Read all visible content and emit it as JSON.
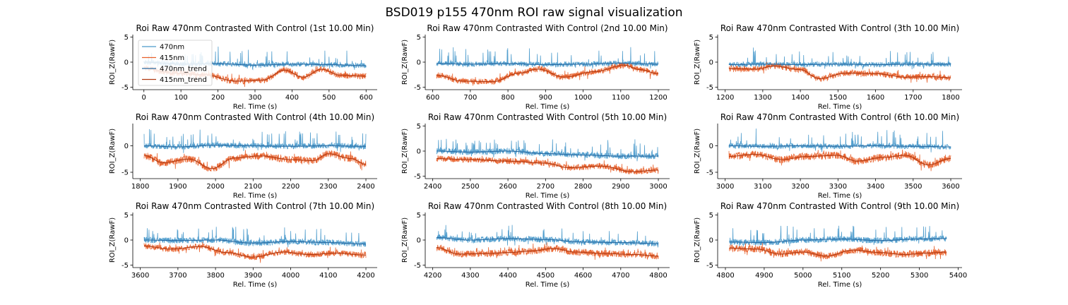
{
  "figure": {
    "title": "BSD019 p155 470nm ROI  raw signal visualization",
    "colors": {
      "signal_470": "#4a9acb",
      "signal_415": "#e8602a",
      "trend_470": "#2b6ca3",
      "trend_415": "#b03a12"
    }
  },
  "chart_data": [
    {
      "type": "line",
      "title": "Roi Raw 470nm Contrasted With Control (1st 10.00 Min)",
      "xlabel": "Rel. Time (s)",
      "ylabel": "ROI_Z(RawF)",
      "xlim": [
        -30,
        630
      ],
      "ylim": [
        -5.5,
        5.5
      ],
      "xticks": [
        0,
        100,
        200,
        300,
        400,
        500,
        600
      ],
      "yticks": [
        -5,
        0,
        5
      ],
      "series": [
        {
          "name": "470nm",
          "t0": 0,
          "t1": 600,
          "level": -0.3,
          "noise": 0.5,
          "spikes": 3.0
        },
        {
          "name": "415nm",
          "t0": 0,
          "t1": 600,
          "level": -2.6,
          "noise": 0.6,
          "spikes": 1.0
        },
        {
          "name": "470nm_trend",
          "x": [
            0,
            100,
            200,
            300,
            400,
            500,
            600
          ],
          "y": [
            0.0,
            -0.4,
            -0.3,
            -0.6,
            -0.4,
            -0.5,
            -0.7
          ]
        },
        {
          "name": "415nm_trend",
          "x": [
            0,
            80,
            160,
            250,
            320,
            380,
            430,
            480,
            530,
            600
          ],
          "y": [
            -1.2,
            -2.2,
            -2.5,
            -3.8,
            -3.6,
            -1.6,
            -3.0,
            -1.4,
            -2.6,
            -2.8
          ]
        }
      ],
      "legend": {
        "position": "upper-left",
        "entries": [
          "470nm",
          "415nm",
          "470nm_trend",
          "415nm_trend"
        ]
      }
    },
    {
      "type": "line",
      "title": "Roi Raw 470nm Contrasted With Control (2nd 10.00 Min)",
      "xlabel": "Rel. Time (s)",
      "ylabel": "ROI_Z(RawF)",
      "xlim": [
        580,
        1230
      ],
      "ylim": [
        -5.5,
        5.5
      ],
      "xticks": [
        600,
        700,
        800,
        900,
        1000,
        1100,
        1200
      ],
      "yticks": [
        -5,
        0,
        5
      ],
      "series": [
        {
          "name": "470nm",
          "t0": 610,
          "t1": 1200,
          "level": -0.2,
          "noise": 0.5,
          "spikes": 3.2
        },
        {
          "name": "415nm",
          "t0": 610,
          "t1": 1200,
          "level": -2.6,
          "noise": 0.6,
          "spikes": 0.8
        },
        {
          "name": "470nm_trend",
          "x": [
            610,
            700,
            800,
            900,
            1000,
            1100,
            1200
          ],
          "y": [
            -0.3,
            -0.4,
            -0.3,
            -0.5,
            -0.4,
            -0.2,
            -0.4
          ]
        },
        {
          "name": "415nm_trend",
          "x": [
            610,
            680,
            760,
            830,
            880,
            950,
            1030,
            1110,
            1150,
            1200
          ],
          "y": [
            -2.6,
            -3.8,
            -3.9,
            -2.2,
            -1.4,
            -3.0,
            -1.9,
            -0.6,
            -1.5,
            -2.3
          ]
        }
      ]
    },
    {
      "type": "line",
      "title": "Roi Raw 470nm Contrasted With Control (3th 10.00 Min)",
      "xlabel": "Rel. Time (s)",
      "ylabel": "ROI_Z(RawF)",
      "xlim": [
        1180,
        1830
      ],
      "ylim": [
        -5.5,
        5.5
      ],
      "xticks": [
        1200,
        1300,
        1400,
        1500,
        1600,
        1700,
        1800
      ],
      "yticks": [
        -5,
        0,
        5
      ],
      "series": [
        {
          "name": "470nm",
          "t0": 1210,
          "t1": 1800,
          "level": -0.3,
          "noise": 0.5,
          "spikes": 3.2
        },
        {
          "name": "415nm",
          "t0": 1210,
          "t1": 1800,
          "level": -2.4,
          "noise": 0.6,
          "spikes": 0.8
        },
        {
          "name": "470nm_trend",
          "x": [
            1210,
            1300,
            1400,
            1500,
            1600,
            1700,
            1800
          ],
          "y": [
            -0.5,
            -0.4,
            -0.5,
            -0.4,
            -0.5,
            -0.4,
            -0.4
          ]
        },
        {
          "name": "415nm_trend",
          "x": [
            1210,
            1280,
            1330,
            1400,
            1450,
            1520,
            1600,
            1680,
            1740,
            1800
          ],
          "y": [
            -1.3,
            -1.4,
            -0.8,
            -1.5,
            -3.3,
            -2.2,
            -2.3,
            -3.0,
            -2.9,
            -3.1
          ]
        }
      ]
    },
    {
      "type": "line",
      "title": "Roi Raw 470nm Contrasted With Control (4th 10.00 Min)",
      "xlabel": "Rel. Time (s)",
      "ylabel": "ROI_Z(RawF)",
      "xlim": [
        1780,
        2430
      ],
      "ylim": [
        -6.2,
        4.2
      ],
      "xticks": [
        1800,
        1900,
        2000,
        2100,
        2200,
        2300,
        2400
      ],
      "yticks": [
        -5,
        0
      ],
      "series": [
        {
          "name": "470nm",
          "t0": 1810,
          "t1": 2400,
          "level": 0.0,
          "noise": 0.5,
          "spikes": 3.0
        },
        {
          "name": "415nm",
          "t0": 1810,
          "t1": 2400,
          "level": -2.6,
          "noise": 0.7,
          "spikes": 1.0
        },
        {
          "name": "470nm_trend",
          "x": [
            1810,
            1900,
            2000,
            2100,
            2200,
            2300,
            2400
          ],
          "y": [
            0.0,
            -0.2,
            0.1,
            0.0,
            -0.1,
            0.0,
            -0.1
          ]
        },
        {
          "name": "415nm_trend",
          "x": [
            1810,
            1860,
            1930,
            1990,
            2050,
            2120,
            2200,
            2260,
            2300,
            2360,
            2400
          ],
          "y": [
            -1.8,
            -3.2,
            -2.5,
            -4.3,
            -2.3,
            -1.9,
            -2.6,
            -2.8,
            -1.5,
            -2.4,
            -3.5
          ]
        }
      ]
    },
    {
      "type": "line",
      "title": "Roi Raw 470nm Contrasted With Control (5th 10.00 Min)",
      "xlabel": "Rel. Time (s)",
      "ylabel": "ROI_Z(RawF)",
      "xlim": [
        2380,
        3030
      ],
      "ylim": [
        -5.5,
        5.5
      ],
      "xticks": [
        2400,
        2500,
        2600,
        2700,
        2800,
        2900,
        3000
      ],
      "yticks": [
        -5,
        0,
        5
      ],
      "series": [
        {
          "name": "470nm",
          "t0": 2410,
          "t1": 3000,
          "level": -0.3,
          "noise": 0.6,
          "spikes": 2.8
        },
        {
          "name": "415nm",
          "t0": 2410,
          "t1": 3000,
          "level": -2.4,
          "noise": 0.6,
          "spikes": 0.8
        },
        {
          "name": "470nm_trend",
          "x": [
            2410,
            2500,
            2600,
            2700,
            2800,
            2900,
            3000
          ],
          "y": [
            0.0,
            -0.2,
            0.0,
            -0.5,
            -0.8,
            -1.0,
            -1.0
          ]
        },
        {
          "name": "415nm_trend",
          "x": [
            2410,
            2500,
            2600,
            2700,
            2760,
            2850,
            2930,
            3000
          ],
          "y": [
            -1.5,
            -1.7,
            -2.0,
            -2.4,
            -3.3,
            -3.0,
            -4.1,
            -3.8
          ]
        }
      ]
    },
    {
      "type": "line",
      "title": "Roi Raw 470nm Contrasted With Control (6th 10.00 Min)",
      "xlabel": "Rel. Time (s)",
      "ylabel": "ROI_Z(RawF)",
      "xlim": [
        2980,
        3630
      ],
      "ylim": [
        -6.2,
        4.2
      ],
      "xticks": [
        3000,
        3100,
        3200,
        3300,
        3400,
        3500,
        3600
      ],
      "yticks": [
        -5,
        0
      ],
      "series": [
        {
          "name": "470nm",
          "t0": 3010,
          "t1": 3600,
          "level": 0.0,
          "noise": 0.5,
          "spikes": 3.0
        },
        {
          "name": "415nm",
          "t0": 3010,
          "t1": 3600,
          "level": -2.3,
          "noise": 0.7,
          "spikes": 0.9
        },
        {
          "name": "470nm_trend",
          "x": [
            3010,
            3100,
            3200,
            3300,
            3400,
            3500,
            3600
          ],
          "y": [
            0.0,
            -0.1,
            0.0,
            -0.1,
            0.0,
            -0.1,
            -0.2
          ]
        },
        {
          "name": "415nm_trend",
          "x": [
            3010,
            3080,
            3150,
            3220,
            3300,
            3350,
            3420,
            3480,
            3540,
            3600
          ],
          "y": [
            -2.0,
            -1.6,
            -2.6,
            -2.0,
            -1.8,
            -2.9,
            -2.2,
            -1.8,
            -3.6,
            -2.4
          ]
        }
      ]
    },
    {
      "type": "line",
      "title": "Roi Raw 470nm Contrasted With Control (7th 10.00 Min)",
      "xlabel": "Rel. Time (s)",
      "ylabel": "ROI_Z(RawF)",
      "xlim": [
        3580,
        4230
      ],
      "ylim": [
        -5.5,
        5.5
      ],
      "xticks": [
        3600,
        3700,
        3800,
        3900,
        4000,
        4100,
        4200
      ],
      "yticks": [
        -5,
        0,
        5
      ],
      "series": [
        {
          "name": "470nm",
          "t0": 3610,
          "t1": 4200,
          "level": -0.2,
          "noise": 0.6,
          "spikes": 3.0
        },
        {
          "name": "415nm",
          "t0": 3610,
          "t1": 4200,
          "level": -2.4,
          "noise": 0.6,
          "spikes": 0.8
        },
        {
          "name": "470nm_trend",
          "x": [
            3610,
            3700,
            3800,
            3900,
            4000,
            4100,
            4200
          ],
          "y": [
            0.0,
            -0.1,
            0.0,
            -0.6,
            -0.3,
            -0.5,
            -0.8
          ]
        },
        {
          "name": "415nm_trend",
          "x": [
            3610,
            3680,
            3760,
            3830,
            3900,
            3980,
            4050,
            4120,
            4200
          ],
          "y": [
            -1.2,
            -1.8,
            -1.3,
            -2.5,
            -3.4,
            -2.4,
            -2.9,
            -2.6,
            -3.0
          ]
        }
      ]
    },
    {
      "type": "line",
      "title": "Roi Raw 470nm Contrasted With Control (8th 10.00 Min)",
      "xlabel": "Rel. Time (s)",
      "ylabel": "ROI_Z(RawF)",
      "xlim": [
        4180,
        4830
      ],
      "ylim": [
        -5.5,
        5.5
      ],
      "xticks": [
        4200,
        4300,
        4400,
        4500,
        4600,
        4700,
        4800
      ],
      "yticks": [
        -5,
        0,
        5
      ],
      "series": [
        {
          "name": "470nm",
          "t0": 4210,
          "t1": 4800,
          "level": 0.0,
          "noise": 0.6,
          "spikes": 2.8
        },
        {
          "name": "415nm",
          "t0": 4210,
          "t1": 4800,
          "level": -2.6,
          "noise": 0.7,
          "spikes": 0.8
        },
        {
          "name": "470nm_trend",
          "x": [
            4210,
            4300,
            4400,
            4500,
            4600,
            4700,
            4800
          ],
          "y": [
            0.5,
            0.0,
            0.3,
            0.1,
            -0.4,
            -0.5,
            -0.7
          ]
        },
        {
          "name": "415nm_trend",
          "x": [
            4210,
            4270,
            4340,
            4400,
            4460,
            4520,
            4580,
            4660,
            4740,
            4800
          ],
          "y": [
            -1.5,
            -2.8,
            -2.7,
            -2.5,
            -2.2,
            -1.7,
            -2.4,
            -2.7,
            -2.9,
            -3.2
          ]
        }
      ]
    },
    {
      "type": "line",
      "title": "Roi Raw 470nm Contrasted With Control (9th 10.00 Min)",
      "xlabel": "Rel. Time (s)",
      "ylabel": "ROI_Z(RawF)",
      "xlim": [
        4780,
        5410
      ],
      "ylim": [
        -5.5,
        5.5
      ],
      "xticks": [
        4800,
        4900,
        5000,
        5100,
        5200,
        5300,
        5400
      ],
      "yticks": [
        -5,
        0,
        5
      ],
      "series": [
        {
          "name": "470nm",
          "t0": 4810,
          "t1": 5370,
          "level": 0.0,
          "noise": 0.6,
          "spikes": 3.0
        },
        {
          "name": "415nm",
          "t0": 4810,
          "t1": 5370,
          "level": -2.4,
          "noise": 0.7,
          "spikes": 0.8
        },
        {
          "name": "470nm_trend",
          "x": [
            4810,
            4900,
            5000,
            5100,
            5200,
            5300,
            5370
          ],
          "y": [
            -0.4,
            -0.5,
            0.0,
            0.2,
            -0.1,
            0.2,
            0.3
          ]
        },
        {
          "name": "415nm_trend",
          "x": [
            4810,
            4880,
            4940,
            5000,
            5060,
            5130,
            5200,
            5260,
            5320,
            5370
          ],
          "y": [
            -1.6,
            -1.8,
            -2.8,
            -2.4,
            -3.2,
            -2.0,
            -2.5,
            -2.9,
            -2.6,
            -2.4
          ]
        }
      ]
    }
  ]
}
